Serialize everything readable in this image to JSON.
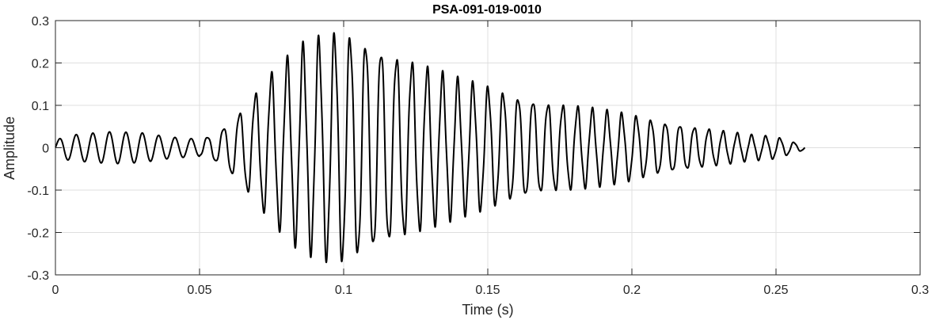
{
  "chart_data": {
    "type": "line",
    "title": "PSA-091-019-0010",
    "xlabel": "Time (s)",
    "ylabel": "Amplitude",
    "xlim": [
      0,
      0.3
    ],
    "ylim": [
      -0.3,
      0.3
    ],
    "grid": true,
    "x_ticks": [
      0,
      0.05,
      0.1,
      0.15,
      0.2,
      0.25,
      0.3
    ],
    "x_tick_labels": [
      "0",
      "0.05",
      "0.1",
      "0.15",
      "0.2",
      "0.25",
      "0.3"
    ],
    "y_ticks": [
      -0.3,
      -0.2,
      -0.1,
      0,
      0.1,
      0.2,
      0.3
    ],
    "y_tick_labels": [
      "-0.3",
      "-0.2",
      "-0.1",
      "0",
      "0.1",
      "0.2",
      "0.3"
    ],
    "series": [
      {
        "color": "#000000",
        "envelope": {
          "t": [
            0,
            0.003,
            0.01,
            0.02,
            0.03,
            0.04,
            0.05,
            0.055,
            0.06,
            0.065,
            0.07,
            0.075,
            0.08,
            0.085,
            0.09,
            0.095,
            0.1,
            0.105,
            0.11,
            0.12,
            0.13,
            0.14,
            0.15,
            0.16,
            0.17,
            0.18,
            0.19,
            0.2,
            0.21,
            0.22,
            0.23,
            0.24,
            0.25,
            0.26
          ],
          "amp": [
            0.015,
            0.028,
            0.033,
            0.038,
            0.035,
            0.025,
            0.02,
            0.03,
            0.055,
            0.09,
            0.13,
            0.17,
            0.2,
            0.23,
            0.245,
            0.26,
            0.265,
            0.255,
            0.24,
            0.21,
            0.18,
            0.155,
            0.14,
            0.12,
            0.105,
            0.095,
            0.085,
            0.075,
            0.06,
            0.05,
            0.04,
            0.03,
            0.025,
            0.005
          ]
        },
        "oscillation_frequency_hz_start": 172,
        "oscillation_frequency_hz_end": 205,
        "end_time": 0.26
      }
    ]
  }
}
